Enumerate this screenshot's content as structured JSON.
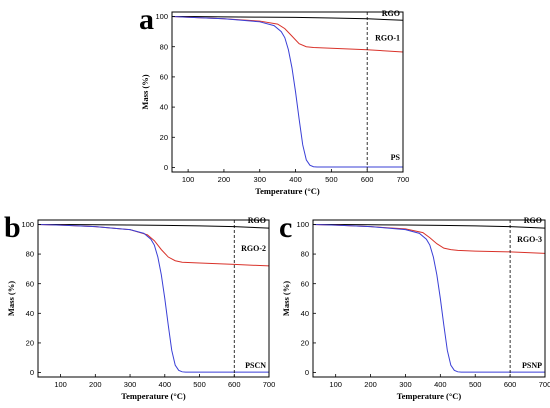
{
  "chart_data": [
    {
      "panel": "a",
      "type": "line",
      "xlabel": "Temperature (°C)",
      "ylabel": "Mass (%)",
      "xlim": [
        55,
        700
      ],
      "ylim": [
        -3,
        103
      ],
      "xticks": [
        100,
        200,
        300,
        400,
        500,
        600,
        700
      ],
      "yticks": [
        0,
        20,
        40,
        60,
        80,
        100
      ],
      "reference_line_x": 600,
      "series": [
        {
          "name": "RGO",
          "color": "#000000",
          "x": [
            55,
            100,
            200,
            300,
            400,
            500,
            600,
            700
          ],
          "y": [
            100,
            100,
            99.8,
            99.6,
            99.4,
            99.0,
            98.5,
            97.5
          ]
        },
        {
          "name": "RGO-1",
          "color": "#d9322a",
          "x": [
            55,
            100,
            200,
            300,
            350,
            370,
            390,
            410,
            430,
            450,
            500,
            600,
            700
          ],
          "y": [
            100,
            99.5,
            98.5,
            97,
            95,
            92,
            87,
            82,
            80,
            79.5,
            79,
            78,
            76.5
          ]
        },
        {
          "name": "PS",
          "color": "#3a3fd6",
          "x": [
            55,
            100,
            200,
            300,
            340,
            360,
            370,
            380,
            390,
            400,
            410,
            420,
            430,
            440,
            450,
            460,
            500,
            600,
            700
          ],
          "y": [
            100,
            99.5,
            98.5,
            96.5,
            94,
            90,
            86,
            78,
            66,
            50,
            32,
            15,
            5,
            1.5,
            0.5,
            0.3,
            0.3,
            0.3,
            0.3
          ]
        }
      ]
    },
    {
      "panel": "b",
      "type": "line",
      "xlabel": "Temperature (°C)",
      "ylabel": "Mass (%)",
      "xlim": [
        35,
        700
      ],
      "ylim": [
        -3,
        103
      ],
      "xticks": [
        100,
        200,
        300,
        400,
        500,
        600,
        700
      ],
      "yticks": [
        0,
        20,
        40,
        60,
        80,
        100
      ],
      "reference_line_x": 600,
      "series": [
        {
          "name": "RGO",
          "color": "#000000",
          "x": [
            35,
            100,
            200,
            300,
            400,
            500,
            600,
            700
          ],
          "y": [
            100,
            100,
            99.8,
            99.6,
            99.4,
            99.0,
            98.5,
            97.5
          ]
        },
        {
          "name": "RGO-2",
          "color": "#d9322a",
          "x": [
            35,
            100,
            200,
            300,
            350,
            370,
            390,
            410,
            430,
            450,
            500,
            600,
            700
          ],
          "y": [
            100,
            99.5,
            98.5,
            96.5,
            93,
            89,
            83,
            78,
            75.5,
            74.5,
            74,
            73,
            72
          ]
        },
        {
          "name": "PSCN",
          "color": "#3a3fd6",
          "x": [
            35,
            100,
            200,
            300,
            340,
            360,
            370,
            380,
            390,
            400,
            410,
            420,
            430,
            440,
            450,
            460,
            500,
            600,
            700
          ],
          "y": [
            100,
            99.5,
            98.5,
            96.5,
            94,
            90,
            86,
            78,
            66,
            50,
            32,
            15,
            5,
            1.5,
            0.5,
            0.3,
            0.3,
            0.3,
            0.3
          ]
        }
      ]
    },
    {
      "panel": "c",
      "type": "line",
      "xlabel": "Temperature (°C)",
      "ylabel": "Mass (%)",
      "xlim": [
        35,
        700
      ],
      "ylim": [
        -3,
        103
      ],
      "xticks": [
        100,
        200,
        300,
        400,
        500,
        600,
        700
      ],
      "yticks": [
        0,
        20,
        40,
        60,
        80,
        100
      ],
      "reference_line_x": 600,
      "series": [
        {
          "name": "RGO",
          "color": "#000000",
          "x": [
            35,
            100,
            200,
            300,
            400,
            500,
            600,
            700
          ],
          "y": [
            100,
            100,
            99.8,
            99.6,
            99.4,
            99.0,
            98.5,
            97.5
          ]
        },
        {
          "name": "RGO-3",
          "color": "#d9322a",
          "x": [
            35,
            100,
            200,
            300,
            350,
            370,
            390,
            410,
            430,
            450,
            500,
            600,
            700
          ],
          "y": [
            100,
            99.5,
            98.5,
            97,
            94.5,
            91,
            87,
            84,
            83,
            82.5,
            82,
            81.5,
            80.5
          ]
        },
        {
          "name": "PSNP",
          "color": "#3a3fd6",
          "x": [
            35,
            100,
            200,
            300,
            340,
            360,
            370,
            380,
            390,
            400,
            410,
            420,
            430,
            440,
            450,
            460,
            500,
            600,
            700
          ],
          "y": [
            100,
            99.5,
            98.5,
            96.5,
            94,
            90,
            86,
            78,
            66,
            50,
            32,
            15,
            5,
            1.5,
            0.5,
            0.3,
            0.3,
            0.3,
            0.3
          ]
        }
      ]
    }
  ]
}
